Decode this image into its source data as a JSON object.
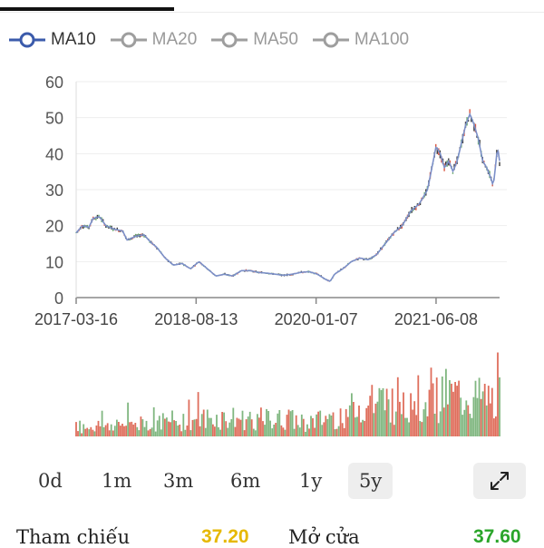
{
  "legend": [
    {
      "label": "MA10",
      "color": "#3b5bab",
      "active": true
    },
    {
      "label": "MA20",
      "color": "#9e9e9e",
      "active": false
    },
    {
      "label": "MA50",
      "color": "#9e9e9e",
      "active": false
    },
    {
      "label": "MA100",
      "color": "#9e9e9e",
      "active": false
    }
  ],
  "tabs": [
    {
      "label": "0d",
      "active": false
    },
    {
      "label": "1m",
      "active": false
    },
    {
      "label": "3m",
      "active": false
    },
    {
      "label": "6m",
      "active": false
    },
    {
      "label": "1y",
      "active": false
    },
    {
      "label": "5y",
      "active": true
    }
  ],
  "expand_icon": "expand-arrows-icon",
  "info": {
    "reference_label": "Tham chiếu",
    "reference_value": "37.20",
    "reference_color": "#e6b800",
    "open_label": "Mở cửa",
    "open_value": "37.60",
    "open_color": "#2aa52a"
  },
  "colors": {
    "up": "#6aaa6a",
    "down": "#d9553f",
    "ma_line": "#7b8fc8",
    "grid": "#eeeeee"
  },
  "chart_data": {
    "type": "line",
    "y_ticks": [
      "0",
      "10",
      "20",
      "30",
      "40",
      "50",
      "60"
    ],
    "ylim": [
      0,
      60
    ],
    "x_ticks": [
      "2017-03-16",
      "2018-08-13",
      "2020-01-07",
      "2021-06-08"
    ],
    "x_tick_positions": [
      0,
      0.2833,
      0.5667,
      0.85
    ],
    "price_series": [
      [
        0.0,
        18
      ],
      [
        0.015,
        20
      ],
      [
        0.03,
        19.5
      ],
      [
        0.04,
        22
      ],
      [
        0.055,
        22.5
      ],
      [
        0.07,
        20
      ],
      [
        0.09,
        19
      ],
      [
        0.11,
        18.5
      ],
      [
        0.12,
        16
      ],
      [
        0.14,
        17
      ],
      [
        0.16,
        17.5
      ],
      [
        0.175,
        15.5
      ],
      [
        0.19,
        14
      ],
      [
        0.21,
        11
      ],
      [
        0.23,
        9
      ],
      [
        0.25,
        9.5
      ],
      [
        0.27,
        8
      ],
      [
        0.29,
        10
      ],
      [
        0.31,
        8
      ],
      [
        0.33,
        6
      ],
      [
        0.35,
        6.5
      ],
      [
        0.37,
        6
      ],
      [
        0.39,
        7.5
      ],
      [
        0.41,
        7.5
      ],
      [
        0.43,
        7
      ],
      [
        0.45,
        6.8
      ],
      [
        0.47,
        6.5
      ],
      [
        0.49,
        6.2
      ],
      [
        0.51,
        6.5
      ],
      [
        0.53,
        7
      ],
      [
        0.55,
        7.2
      ],
      [
        0.57,
        6.5
      ],
      [
        0.59,
        5
      ],
      [
        0.6,
        4.5
      ],
      [
        0.61,
        6.5
      ],
      [
        0.63,
        8
      ],
      [
        0.65,
        10
      ],
      [
        0.67,
        11
      ],
      [
        0.69,
        10.5
      ],
      [
        0.71,
        12
      ],
      [
        0.73,
        15
      ],
      [
        0.75,
        18
      ],
      [
        0.77,
        20
      ],
      [
        0.79,
        24
      ],
      [
        0.81,
        26
      ],
      [
        0.83,
        30
      ],
      [
        0.84,
        36
      ],
      [
        0.85,
        42
      ],
      [
        0.86,
        40
      ],
      [
        0.87,
        36
      ],
      [
        0.88,
        38
      ],
      [
        0.89,
        35
      ],
      [
        0.9,
        38
      ],
      [
        0.91,
        43
      ],
      [
        0.92,
        48
      ],
      [
        0.93,
        51
      ],
      [
        0.94,
        48
      ],
      [
        0.95,
        44
      ],
      [
        0.96,
        38
      ],
      [
        0.97,
        36
      ],
      [
        0.98,
        33
      ],
      [
        0.985,
        31
      ],
      [
        0.99,
        36
      ],
      [
        0.995,
        42
      ],
      [
        1.0,
        38
      ]
    ],
    "volume": {
      "ylim": [
        0,
        100
      ],
      "profile": [
        [
          0.0,
          12
        ],
        [
          0.1,
          15
        ],
        [
          0.2,
          18
        ],
        [
          0.3,
          22
        ],
        [
          0.4,
          22
        ],
        [
          0.5,
          20
        ],
        [
          0.55,
          18
        ],
        [
          0.6,
          22
        ],
        [
          0.65,
          32
        ],
        [
          0.7,
          40
        ],
        [
          0.75,
          45
        ],
        [
          0.8,
          48
        ],
        [
          0.85,
          52
        ],
        [
          0.9,
          48
        ],
        [
          0.95,
          45
        ],
        [
          1.0,
          45
        ]
      ],
      "bar_count": 230
    }
  }
}
